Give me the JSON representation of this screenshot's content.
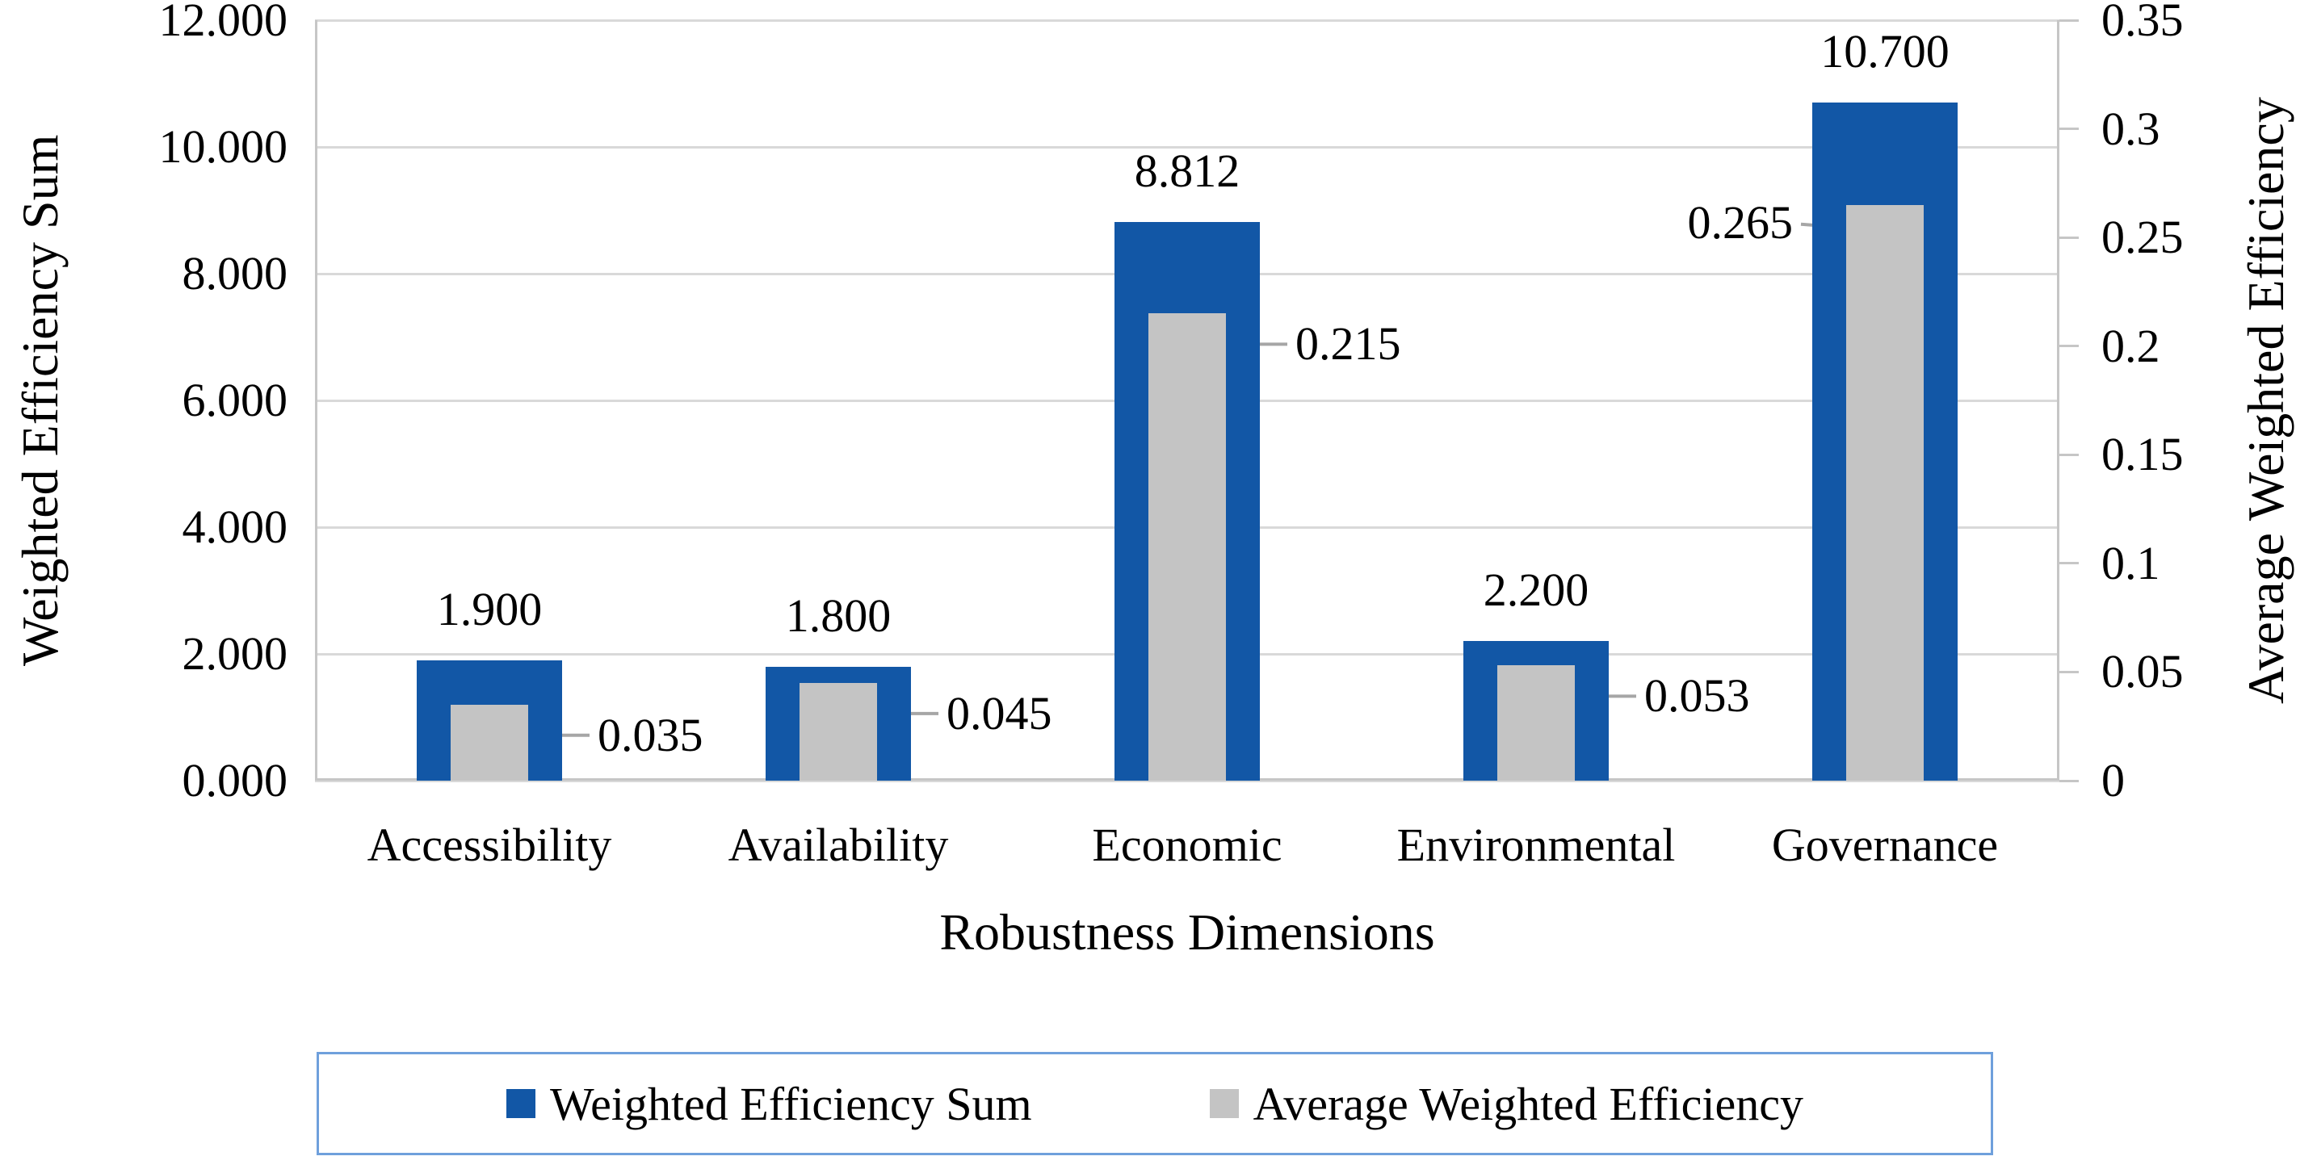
{
  "chart_data": {
    "type": "bar",
    "title": "",
    "categories": [
      "Accessibility",
      "Availability",
      "Economic",
      "Environmental",
      "Governance"
    ],
    "series": [
      {
        "name": "Weighted Efficiency Sum",
        "axis": "left",
        "color": "#1257A6",
        "values": [
          1.9,
          1.8,
          8.812,
          2.2,
          10.7
        ],
        "data_labels": [
          "1.900",
          "1.800",
          "8.812",
          "2.200",
          "10.700"
        ]
      },
      {
        "name": "Average Weighted Efficiency",
        "axis": "right",
        "color": "#C4C4C4",
        "values": [
          0.035,
          0.045,
          0.215,
          0.053,
          0.265
        ],
        "data_labels": [
          "0.035",
          "0.045",
          "0.215",
          "0.053",
          "0.265"
        ],
        "label_sides": [
          "right",
          "right",
          "right",
          "right",
          "left"
        ]
      }
    ],
    "xlabel": "Robustness Dimensions",
    "ylabel_left": "Weighted Efficiency Sum",
    "ylabel_right": "Average Weighted Efficiency",
    "y_left": {
      "min": 0,
      "max": 12,
      "step": 2,
      "tick_labels": [
        "0.000",
        "2.000",
        "4.000",
        "6.000",
        "8.000",
        "10.000",
        "12.000"
      ]
    },
    "y_right": {
      "min": 0,
      "max": 0.35,
      "step": 0.05,
      "tick_labels": [
        "0",
        "0.05",
        "0.1",
        "0.15",
        "0.2",
        "0.25",
        "0.3",
        "0.35"
      ]
    },
    "grid": true,
    "grid_color": "#D9D9D9",
    "axis_line_color": "#C6C6C6",
    "leader_line_color": "#A6A6A6",
    "legend_position": "bottom",
    "legend_border_color": "#6FA0DC"
  }
}
